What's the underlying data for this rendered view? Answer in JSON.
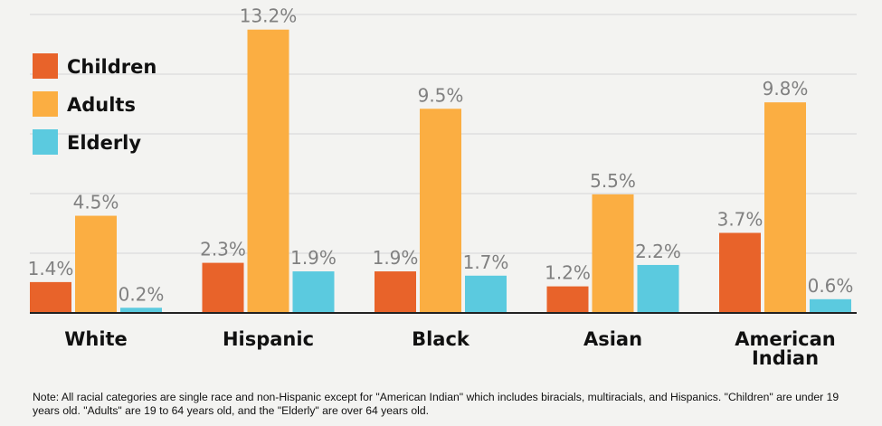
{
  "chart_data": {
    "type": "bar",
    "categories": [
      {
        "label": "White",
        "lines": [
          "White"
        ]
      },
      {
        "label": "Hispanic",
        "lines": [
          "Hispanic"
        ]
      },
      {
        "label": "Black",
        "lines": [
          "Black"
        ]
      },
      {
        "label": "Asian",
        "lines": [
          "Asian"
        ]
      },
      {
        "label": "American Indian",
        "lines": [
          "American",
          "Indian"
        ]
      }
    ],
    "series": [
      {
        "name": "Children",
        "color": "#e8632a",
        "values": [
          1.4,
          2.3,
          1.9,
          1.2,
          3.7
        ],
        "labels": [
          "1.4%",
          "2.3%",
          "1.9%",
          "1.2%",
          "3.7%"
        ]
      },
      {
        "name": "Adults",
        "color": "#fbae42",
        "values": [
          4.5,
          13.2,
          9.5,
          5.5,
          9.8
        ],
        "labels": [
          "4.5%",
          "13.2%",
          "9.5%",
          "5.5%",
          "9.8%"
        ]
      },
      {
        "name": "Elderly",
        "color": "#5bcadf",
        "values": [
          0.2,
          1.9,
          1.7,
          2.2,
          0.6
        ],
        "labels": [
          "0.2%",
          "1.9%",
          "1.7%",
          "2.2%",
          "0.6%"
        ]
      }
    ],
    "ylim": [
      0,
      14
    ],
    "gridlines": true,
    "legend": "top-left",
    "title": "",
    "xlabel": "",
    "ylabel": ""
  },
  "note": "Note:  All racial categories are single race and non-Hispanic except for \"American Indian\" which includes biracials, multiracials, and Hispanics. \"Children\" are under 19 years old. \"Adults\" are 19 to 64 years old, and the \"Elderly\" are over 64 years old."
}
